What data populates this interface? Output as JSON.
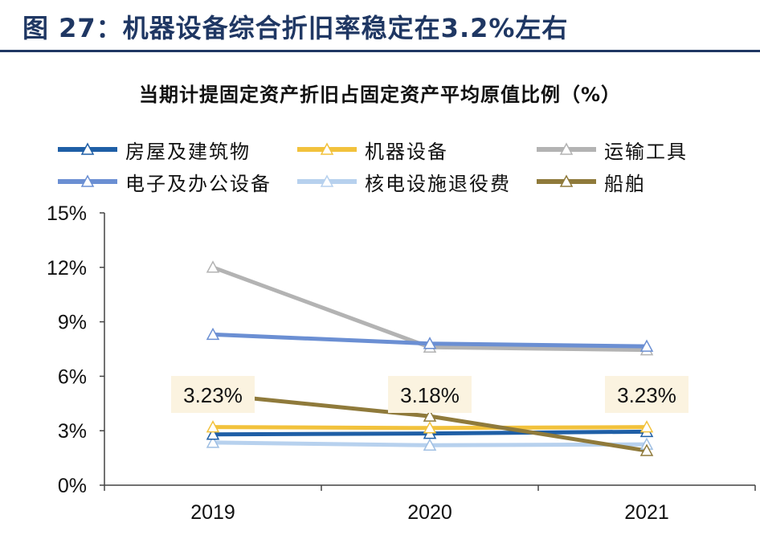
{
  "header": {
    "title": "图 27：机器设备综合折旧率稳定在3.2%左右"
  },
  "chart_data": {
    "type": "line",
    "title": "当期计提固定资产折旧占固定资产平均原值比例（%）",
    "xlabel": "",
    "ylabel": "",
    "categories": [
      "2019",
      "2020",
      "2021"
    ],
    "ylim": [
      0,
      15
    ],
    "yticks": [
      "0%",
      "3%",
      "6%",
      "9%",
      "12%",
      "15%"
    ],
    "ytick_values": [
      0,
      3,
      6,
      9,
      12,
      15
    ],
    "grid": false,
    "legend_position": "top",
    "series": [
      {
        "name": "房屋及建筑物",
        "color": "#1f5fa6",
        "values": [
          2.8,
          2.85,
          2.95
        ]
      },
      {
        "name": "机器设备",
        "color": "#f2c23c",
        "values": [
          3.2,
          3.15,
          3.2
        ]
      },
      {
        "name": "运输工具",
        "color": "#b3b3b3",
        "values": [
          12.0,
          7.6,
          7.45
        ]
      },
      {
        "name": "电子及办公设备",
        "color": "#6b8fd3",
        "values": [
          8.3,
          7.8,
          7.65
        ]
      },
      {
        "name": "核电设施退役费",
        "color": "#b7d1ee",
        "values": [
          2.35,
          2.2,
          2.25
        ]
      },
      {
        "name": "船舶",
        "color": "#8f7a3b",
        "values": [
          5.0,
          3.8,
          1.9
        ]
      }
    ],
    "data_labels": [
      {
        "category": "2019",
        "text": "3.23%"
      },
      {
        "category": "2020",
        "text": "3.18%"
      },
      {
        "category": "2021",
        "text": "3.23%"
      }
    ]
  }
}
